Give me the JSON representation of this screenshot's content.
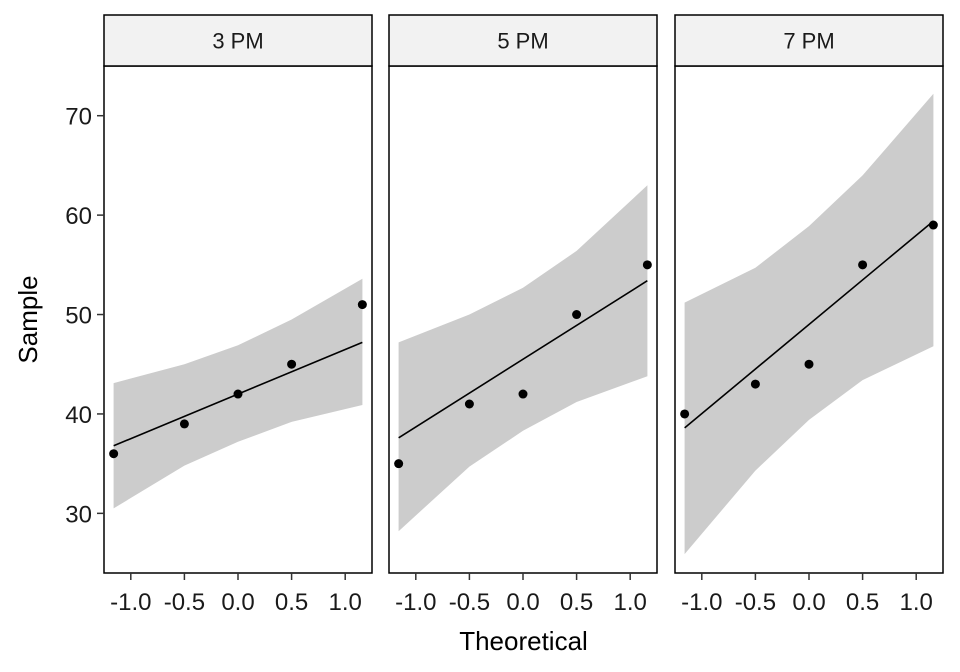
{
  "chart_data": {
    "type": "scatter",
    "subtype": "qq-plot-faceted",
    "xlabel": "Theoretical",
    "ylabel": "Sample",
    "xlim": [
      -1.25,
      1.25
    ],
    "ylim": [
      24,
      75
    ],
    "x_ticks": [
      -1.0,
      -0.5,
      0.0,
      0.5,
      1.0
    ],
    "x_tick_labels": [
      "-1.0",
      "-0.5",
      "0.0",
      "0.5",
      "1.0"
    ],
    "y_ticks": [
      30,
      40,
      50,
      60,
      70
    ],
    "y_tick_labels": [
      "30",
      "40",
      "50",
      "60",
      "70"
    ],
    "grid": false,
    "band_color": "#cccccc",
    "point_color": "#000000",
    "line_color": "#000000",
    "strip_color": "#f2f2f2",
    "facets": [
      {
        "label": "3 PM",
        "points": [
          {
            "x": -1.16,
            "y": 36
          },
          {
            "x": -0.5,
            "y": 39
          },
          {
            "x": 0.0,
            "y": 42
          },
          {
            "x": 0.5,
            "y": 45
          },
          {
            "x": 1.16,
            "y": 51
          }
        ],
        "line": {
          "x": [
            -1.16,
            1.16
          ],
          "y": [
            36.8,
            47.2
          ]
        },
        "band": {
          "x": [
            -1.16,
            -0.5,
            0.0,
            0.5,
            1.16
          ],
          "lower": [
            30.5,
            34.8,
            37.2,
            39.2,
            40.9
          ],
          "upper": [
            43.1,
            45.0,
            46.9,
            49.5,
            53.6
          ]
        }
      },
      {
        "label": "5 PM",
        "points": [
          {
            "x": -1.16,
            "y": 35
          },
          {
            "x": -0.5,
            "y": 41
          },
          {
            "x": 0.0,
            "y": 42
          },
          {
            "x": 0.5,
            "y": 50
          },
          {
            "x": 1.16,
            "y": 55
          }
        ],
        "line": {
          "x": [
            -1.16,
            1.16
          ],
          "y": [
            37.6,
            53.4
          ]
        },
        "band": {
          "x": [
            -1.16,
            -0.5,
            0.0,
            0.5,
            1.16
          ],
          "lower": [
            28.2,
            34.7,
            38.3,
            41.2,
            43.8
          ],
          "upper": [
            47.2,
            50.0,
            52.7,
            56.4,
            63.0
          ]
        }
      },
      {
        "label": "7 PM",
        "points": [
          {
            "x": -1.16,
            "y": 40
          },
          {
            "x": -0.5,
            "y": 43
          },
          {
            "x": 0.0,
            "y": 45
          },
          {
            "x": 0.5,
            "y": 55
          },
          {
            "x": 1.16,
            "y": 59
          }
        ],
        "line": {
          "x": [
            -1.16,
            1.16
          ],
          "y": [
            38.6,
            59.4
          ]
        },
        "band": {
          "x": [
            -1.16,
            -0.5,
            0.0,
            0.5,
            1.16
          ],
          "lower": [
            25.9,
            34.3,
            39.4,
            43.4,
            46.8
          ],
          "upper": [
            51.2,
            54.7,
            58.9,
            64.0,
            72.2
          ]
        }
      }
    ]
  }
}
